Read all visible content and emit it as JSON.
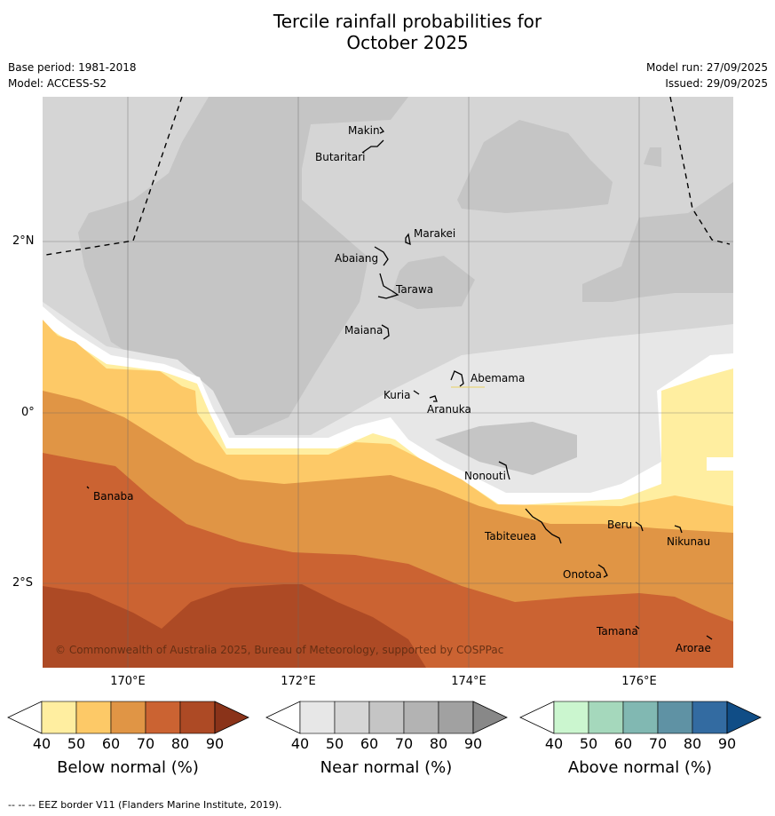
{
  "title": {
    "line1": "Tercile rainfall probabilities for",
    "line2": "October 2025"
  },
  "meta": {
    "base_period": "Base period: 1981-2018",
    "model": "Model: ACCESS-S2",
    "model_run": "Model run: 27/09/2025",
    "issued": "Issued: 29/09/2025"
  },
  "axes": {
    "lat_labels": [
      "2°N",
      "0°",
      "2°S"
    ],
    "lon_labels": [
      "170°E",
      "172°E",
      "174°E",
      "176°E"
    ]
  },
  "islands": {
    "makin": "Makin",
    "butaritari": "Butaritari",
    "marakei": "Marakei",
    "abaiang": "Abaiang",
    "tarawa": "Tarawa",
    "maiana": "Maiana",
    "abemama": "Abemama",
    "kuria": "Kuria",
    "aranuka": "Aranuka",
    "nonouti": "Nonouti",
    "banaba": "Banaba",
    "tabiteuea": "Tabiteuea",
    "beru": "Beru",
    "nikunau": "Nikunau",
    "onotoa": "Onotoa",
    "tamana": "Tamana",
    "arorae": "Arorae"
  },
  "copyright": "© Commonwealth of Australia 2025, Bureau of Meteorology, supported by COSPPac",
  "colorbars": {
    "below": {
      "label": "Below normal (%)",
      "ticks": [
        "40",
        "50",
        "60",
        "70",
        "80",
        "90"
      ],
      "colors": [
        "#ffeea0",
        "#fdc967",
        "#e09545",
        "#cb6332",
        "#ad4a25",
        "#8a3319"
      ]
    },
    "near": {
      "label": "Near normal (%)",
      "ticks": [
        "40",
        "50",
        "60",
        "70",
        "80",
        "90"
      ],
      "colors": [
        "#e7e7e7",
        "#d5d5d5",
        "#c5c5c5",
        "#b3b3b3",
        "#a1a1a1",
        "#888888"
      ]
    },
    "above": {
      "label": "Above normal (%)",
      "ticks": [
        "40",
        "50",
        "60",
        "70",
        "80",
        "90"
      ],
      "colors": [
        "#cbf6cf",
        "#a5d8bc",
        "#81b8b2",
        "#5f92a4",
        "#336ba1",
        "#104d86"
      ]
    }
  },
  "footer": "--  --  -- EEZ border V11 (Flanders Marine Institute, 2019)."
}
